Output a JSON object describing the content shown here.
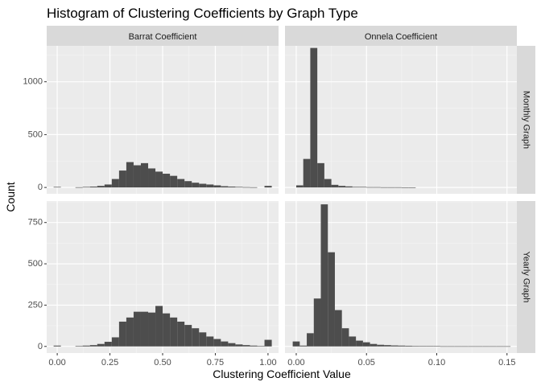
{
  "chart_data": {
    "type": "bar",
    "title": "Histogram of Clustering Coefficients by Graph Type",
    "xlabel": "Clustering Coefficient Value",
    "ylabel": "Count",
    "columns": [
      "Barrat Coefficient",
      "Onnela Coefficient"
    ],
    "rows": [
      "Monthly Graph",
      "Yearly Graph"
    ],
    "grid": true,
    "bar_color": "#4d4d4d",
    "panel_bg": "#ebebeb",
    "strip_bg": "#d9d9d9",
    "x_axes": [
      {
        "range": [
          -0.05,
          1.05
        ],
        "ticks": [
          0.0,
          0.25,
          0.5,
          0.75,
          1.0
        ],
        "tick_labels": [
          "0.00",
          "0.25",
          "0.50",
          "0.75",
          "1.00"
        ],
        "minor": [
          0.125,
          0.375,
          0.625,
          0.875
        ]
      },
      {
        "range": [
          -0.008,
          0.157
        ],
        "ticks": [
          0.0,
          0.05,
          0.1,
          0.15
        ],
        "tick_labels": [
          "0.00",
          "0.05",
          "0.10",
          "0.15"
        ],
        "minor": [
          0.025,
          0.075,
          0.125
        ]
      }
    ],
    "y_axes": [
      {
        "range": [
          -60,
          1340
        ],
        "ticks": [
          0,
          500,
          1000
        ],
        "tick_labels": [
          "0",
          "500",
          "1000"
        ],
        "minor": [
          250,
          750,
          1250
        ]
      },
      {
        "range": [
          -40,
          880
        ],
        "ticks": [
          0,
          250,
          500,
          750
        ],
        "tick_labels": [
          "0",
          "250",
          "500",
          "750"
        ],
        "minor": [
          125,
          375,
          625,
          875
        ]
      }
    ],
    "panels": [
      {
        "row": 0,
        "col": 0,
        "bin_start": -0.0172,
        "bin_width": 0.0345,
        "values": [
          5,
          0,
          0,
          2,
          5,
          8,
          15,
          28,
          80,
          160,
          240,
          210,
          230,
          180,
          150,
          130,
          110,
          80,
          60,
          45,
          35,
          28,
          20,
          12,
          8,
          5,
          3,
          2,
          0,
          15
        ]
      },
      {
        "row": 0,
        "col": 1,
        "bin_start": 0.0,
        "bin_width": 0.005,
        "values": [
          20,
          270,
          1320,
          230,
          80,
          25,
          15,
          10,
          5,
          5,
          3,
          3,
          2,
          2,
          2,
          1,
          1,
          0,
          0,
          0,
          0,
          0,
          0,
          0,
          0,
          0,
          0,
          0,
          0,
          0
        ]
      },
      {
        "row": 1,
        "col": 0,
        "bin_start": -0.0172,
        "bin_width": 0.0345,
        "values": [
          5,
          0,
          0,
          2,
          5,
          8,
          15,
          28,
          55,
          150,
          175,
          210,
          210,
          205,
          245,
          200,
          175,
          150,
          130,
          110,
          85,
          60,
          45,
          30,
          20,
          12,
          8,
          5,
          3,
          40
        ]
      },
      {
        "row": 1,
        "col": 1,
        "bin_start": -0.0025,
        "bin_width": 0.005,
        "values": [
          30,
          5,
          80,
          290,
          860,
          570,
          220,
          110,
          60,
          35,
          25,
          15,
          10,
          8,
          6,
          5,
          4,
          3,
          2,
          2,
          2,
          1,
          1,
          1,
          1,
          1,
          1,
          1,
          1,
          1,
          1
        ]
      }
    ]
  }
}
